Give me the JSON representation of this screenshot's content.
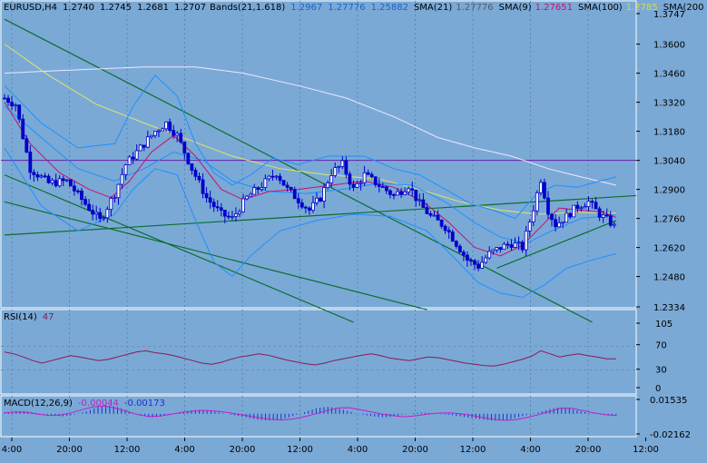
{
  "colors": {
    "background": "#7aa9d6",
    "candle": "#0000c8",
    "bands": "#1e90ff",
    "sma21": "#c0c0c0",
    "sma9": "#c8106e",
    "sma100": "#e3e36a",
    "sma200": "#f0e6ff",
    "trendline": "#0a6e2e",
    "hline": "#6b1fa8",
    "rsi": "#8c1a55",
    "macd_hist": "#1f2fd0",
    "macd_signal": "#c21ec6"
  },
  "main_legend": {
    "symbol": "EURUSD,H4",
    "ohlc": [
      "1.2740",
      "1.2745",
      "1.2681",
      "1.2707"
    ],
    "bands_label": "Bands(21,1.618)",
    "bands_values": [
      "1.2967",
      "1.27776",
      "1.25882"
    ],
    "sma21_label": "SMA(21)",
    "sma21_value": "1.27776",
    "sma9_label": "SMA(9)",
    "sma9_value": "1.27651",
    "sma100_label": "SMA(100)",
    "sma100_value": "1.2785",
    "sma200_label": "SMA(200"
  },
  "rsi_legend": {
    "label": "RSI(14)",
    "value": "47"
  },
  "macd_legend": {
    "label": "MACD(12,26,9)",
    "value1": "-0.00044",
    "value2": "-0.00173"
  },
  "chart_data": {
    "type": "candlestick",
    "symbol": "EURUSD",
    "timeframe": "H4",
    "price_axis": {
      "ticks": [
        "1.3747",
        "1.3600",
        "1.3460",
        "1.3320",
        "1.3180",
        "1.3040",
        "1.2900",
        "1.2760",
        "1.2620",
        "1.2480",
        "1.2334"
      ],
      "ylim": [
        1.2334,
        1.3747
      ]
    },
    "time_axis": {
      "ticks": [
        "4:00",
        "20:00",
        "12:00",
        "4:00",
        "20:00",
        "12:00",
        "4:00",
        "20:00",
        "12:00",
        "4:00",
        "20:00",
        "12:00"
      ]
    },
    "horizontal_line": 1.304,
    "price_path": [
      [
        0,
        1.334
      ],
      [
        6,
        1.331
      ],
      [
        14,
        1.3
      ],
      [
        24,
        1.293
      ],
      [
        34,
        1.294
      ],
      [
        44,
        1.283
      ],
      [
        52,
        1.275
      ],
      [
        60,
        1.288
      ],
      [
        66,
        1.302
      ],
      [
        74,
        1.31
      ],
      [
        82,
        1.318
      ],
      [
        88,
        1.322
      ],
      [
        94,
        1.316
      ],
      [
        102,
        1.3
      ],
      [
        110,
        1.286
      ],
      [
        118,
        1.278
      ],
      [
        124,
        1.276
      ],
      [
        132,
        1.286
      ],
      [
        140,
        1.292
      ],
      [
        148,
        1.298
      ],
      [
        154,
        1.29
      ],
      [
        160,
        1.285
      ],
      [
        166,
        1.28
      ],
      [
        172,
        1.286
      ],
      [
        178,
        1.298
      ],
      [
        184,
        1.302
      ],
      [
        190,
        1.29
      ],
      [
        196,
        1.297
      ],
      [
        204,
        1.292
      ],
      [
        212,
        1.287
      ],
      [
        220,
        1.292
      ],
      [
        226,
        1.283
      ],
      [
        232,
        1.277
      ],
      [
        240,
        1.272
      ],
      [
        246,
        1.264
      ],
      [
        252,
        1.256
      ],
      [
        258,
        1.253
      ],
      [
        264,
        1.259
      ],
      [
        270,
        1.262
      ],
      [
        276,
        1.264
      ],
      [
        282,
        1.262
      ],
      [
        288,
        1.281
      ],
      [
        292,
        1.295
      ],
      [
        296,
        1.28
      ],
      [
        300,
        1.273
      ],
      [
        306,
        1.277
      ],
      [
        312,
        1.282
      ],
      [
        318,
        1.284
      ],
      [
        324,
        1.278
      ],
      [
        330,
        1.274
      ],
      [
        333,
        1.271
      ]
    ],
    "indicators": {
      "bollinger_upper": [
        [
          0,
          1.34
        ],
        [
          20,
          1.322
        ],
        [
          40,
          1.31
        ],
        [
          60,
          1.312
        ],
        [
          70,
          1.33
        ],
        [
          82,
          1.345
        ],
        [
          94,
          1.335
        ],
        [
          104,
          1.312
        ],
        [
          114,
          1.298
        ],
        [
          124,
          1.292
        ],
        [
          134,
          1.297
        ],
        [
          146,
          1.305
        ],
        [
          160,
          1.302
        ],
        [
          176,
          1.306
        ],
        [
          196,
          1.306
        ],
        [
          212,
          1.3
        ],
        [
          226,
          1.297
        ],
        [
          240,
          1.29
        ],
        [
          254,
          1.283
        ],
        [
          266,
          1.28
        ],
        [
          278,
          1.276
        ],
        [
          290,
          1.288
        ],
        [
          300,
          1.292
        ],
        [
          312,
          1.291
        ],
        [
          324,
          1.294
        ],
        [
          333,
          1.296
        ]
      ],
      "bollinger_lower": [
        [
          0,
          1.31
        ],
        [
          20,
          1.282
        ],
        [
          40,
          1.27
        ],
        [
          60,
          1.278
        ],
        [
          70,
          1.29
        ],
        [
          82,
          1.3
        ],
        [
          94,
          1.297
        ],
        [
          104,
          1.275
        ],
        [
          114,
          1.255
        ],
        [
          124,
          1.248
        ],
        [
          134,
          1.258
        ],
        [
          150,
          1.27
        ],
        [
          170,
          1.275
        ],
        [
          190,
          1.278
        ],
        [
          210,
          1.277
        ],
        [
          230,
          1.27
        ],
        [
          246,
          1.256
        ],
        [
          258,
          1.245
        ],
        [
          270,
          1.24
        ],
        [
          282,
          1.238
        ],
        [
          294,
          1.244
        ],
        [
          306,
          1.252
        ],
        [
          320,
          1.256
        ],
        [
          333,
          1.259
        ]
      ],
      "sma9": [
        [
          0,
          1.332
        ],
        [
          14,
          1.312
        ],
        [
          30,
          1.298
        ],
        [
          46,
          1.29
        ],
        [
          58,
          1.286
        ],
        [
          68,
          1.294
        ],
        [
          80,
          1.308
        ],
        [
          92,
          1.316
        ],
        [
          104,
          1.306
        ],
        [
          118,
          1.29
        ],
        [
          130,
          1.285
        ],
        [
          144,
          1.289
        ],
        [
          160,
          1.29
        ],
        [
          178,
          1.292
        ],
        [
          196,
          1.294
        ],
        [
          212,
          1.291
        ],
        [
          228,
          1.284
        ],
        [
          242,
          1.274
        ],
        [
          256,
          1.262
        ],
        [
          270,
          1.258
        ],
        [
          282,
          1.263
        ],
        [
          292,
          1.272
        ],
        [
          302,
          1.281
        ],
        [
          314,
          1.28
        ],
        [
          326,
          1.279
        ],
        [
          333,
          1.2765
        ]
      ],
      "sma21": [
        [
          0,
          1.33
        ],
        [
          20,
          1.315
        ],
        [
          40,
          1.3
        ],
        [
          60,
          1.294
        ],
        [
          76,
          1.3
        ],
        [
          92,
          1.308
        ],
        [
          108,
          1.304
        ],
        [
          124,
          1.294
        ],
        [
          144,
          1.289
        ],
        [
          164,
          1.288
        ],
        [
          184,
          1.29
        ],
        [
          204,
          1.293
        ],
        [
          222,
          1.292
        ],
        [
          240,
          1.284
        ],
        [
          256,
          1.274
        ],
        [
          270,
          1.267
        ],
        [
          284,
          1.264
        ],
        [
          298,
          1.27
        ],
        [
          314,
          1.276
        ],
        [
          333,
          1.2778
        ]
      ],
      "sma100": [
        [
          0,
          1.36
        ],
        [
          24,
          1.345
        ],
        [
          50,
          1.331
        ],
        [
          76,
          1.322
        ],
        [
          100,
          1.314
        ],
        [
          124,
          1.306
        ],
        [
          150,
          1.3
        ],
        [
          176,
          1.297
        ],
        [
          204,
          1.295
        ],
        [
          226,
          1.29
        ],
        [
          248,
          1.284
        ],
        [
          270,
          1.28
        ],
        [
          290,
          1.278
        ],
        [
          312,
          1.279
        ],
        [
          333,
          1.2785
        ]
      ],
      "sma200": [
        [
          0,
          1.346
        ],
        [
          24,
          1.347
        ],
        [
          50,
          1.348
        ],
        [
          76,
          1.349
        ],
        [
          104,
          1.349
        ],
        [
          130,
          1.346
        ],
        [
          160,
          1.34
        ],
        [
          186,
          1.334
        ],
        [
          212,
          1.325
        ],
        [
          236,
          1.315
        ],
        [
          256,
          1.31
        ],
        [
          276,
          1.306
        ],
        [
          296,
          1.3
        ],
        [
          314,
          1.296
        ],
        [
          333,
          1.292
        ]
      ]
    },
    "trendlines": [
      [
        [
          0,
          1.372
        ],
        [
          320,
          1.226
        ]
      ],
      [
        [
          0,
          1.297
        ],
        [
          190,
          1.226
        ]
      ],
      [
        [
          0,
          1.284
        ],
        [
          230,
          1.232
        ]
      ],
      [
        [
          0,
          1.268
        ],
        [
          380,
          1.289
        ]
      ],
      [
        [
          268,
          1.252
        ],
        [
          333,
          1.275
        ]
      ]
    ],
    "rsi": {
      "label": "RSI(14)",
      "ticks": [
        "105",
        "70",
        "30",
        "0"
      ],
      "ylim": [
        0,
        105
      ],
      "values": [
        58,
        55,
        50,
        44,
        40,
        44,
        48,
        52,
        50,
        47,
        44,
        46,
        50,
        54,
        58,
        60,
        57,
        55,
        52,
        48,
        44,
        40,
        38,
        41,
        46,
        50,
        52,
        55,
        53,
        49,
        45,
        42,
        39,
        37,
        40,
        44,
        47,
        50,
        53,
        55,
        52,
        48,
        46,
        44,
        47,
        50,
        49,
        46,
        43,
        40,
        38,
        36,
        35,
        38,
        42,
        46,
        51,
        60,
        55,
        50,
        53,
        55,
        52,
        50,
        47,
        47
      ]
    },
    "macd": {
      "label": "MACD(12,26,9)",
      "ticks": [
        "0.01535",
        "-0.02162"
      ],
      "ylim": [
        -0.02162,
        0.01535
      ],
      "histogram": [
        0.0012,
        0.0016,
        0.002,
        0.0026,
        0.003,
        0.0028,
        0.0024,
        0.0018,
        0.001,
        0.0004,
        -0.0004,
        -0.001,
        -0.0016,
        -0.002,
        -0.0024,
        -0.0026,
        -0.0022,
        -0.0016,
        -0.0008,
        0.0004,
        0.0014,
        0.0026,
        0.004,
        0.0056,
        0.0072,
        0.0084,
        0.009,
        0.0088,
        0.0082,
        0.0072,
        0.0058,
        0.0042,
        0.0026,
        0.001,
        -0.0004,
        -0.0016,
        -0.0026,
        -0.0034,
        -0.0038,
        -0.0036,
        -0.003,
        -0.0022,
        -0.0012,
        -0.0002,
        0.0008,
        0.0016,
        0.0024,
        0.003,
        0.0036,
        0.004,
        0.0042,
        0.004,
        0.0036,
        0.003,
        0.0022,
        0.0014,
        0.0006,
        0.0,
        -0.0008,
        -0.0016,
        -0.0024,
        -0.0032,
        -0.004,
        -0.0048,
        -0.0056,
        -0.0062,
        -0.0066,
        -0.007,
        -0.0072,
        -0.007,
        -0.0066,
        -0.006,
        -0.005,
        -0.0038,
        -0.0024,
        -0.001,
        0.0004,
        0.0018,
        0.0032,
        0.0046,
        0.0058,
        0.0066,
        0.0072,
        0.0074,
        0.007,
        0.0062,
        0.0052,
        0.0042,
        0.003,
        0.0018,
        0.0006,
        -0.0004,
        -0.0012,
        -0.0018,
        -0.0024,
        -0.003,
        -0.0034,
        -0.0036,
        -0.0036,
        -0.0032,
        -0.0026,
        -0.0018,
        -0.001,
        -0.0004,
        0.0002,
        0.0008,
        0.0012,
        0.0014,
        0.0012,
        0.0008,
        0.0004,
        0.0,
        -0.0004,
        -0.0008,
        -0.0012,
        -0.0016,
        -0.0022,
        -0.0028,
        -0.0034,
        -0.004,
        -0.0046,
        -0.0052,
        -0.0058,
        -0.0064,
        -0.0068,
        -0.0072,
        -0.0074,
        -0.0074,
        -0.007,
        -0.0064,
        -0.0056,
        -0.0046,
        -0.0036,
        -0.0026,
        -0.0016,
        -0.0006,
        0.0004,
        0.0014,
        0.0026,
        0.0038,
        0.005,
        0.006,
        0.0066,
        0.0068,
        0.0064,
        0.0056,
        0.0046,
        0.0036,
        0.0026,
        0.0018,
        0.001,
        0.0004,
        -0.0002,
        -0.0008,
        -0.0014,
        -0.0018,
        -0.002,
        -0.0018
      ],
      "signal": [
        0.001,
        0.002,
        0.0015,
        -0.0005,
        -0.0018,
        -0.0015,
        0.001,
        0.0045,
        0.0075,
        0.0082,
        0.006,
        0.0025,
        -0.001,
        -0.003,
        -0.0025,
        -0.0005,
        0.0015,
        0.003,
        0.0036,
        0.003,
        0.0015,
        -0.0005,
        -0.0025,
        -0.0045,
        -0.006,
        -0.0066,
        -0.0055,
        -0.003,
        0.0,
        0.0035,
        0.0062,
        0.0065,
        0.0045,
        0.002,
        -0.0005,
        -0.0022,
        -0.0032,
        -0.0022,
        -0.0005,
        0.0008,
        0.001,
        0.0,
        -0.0018,
        -0.004,
        -0.006,
        -0.007,
        -0.0062,
        -0.004,
        -0.001,
        0.0025,
        0.0058,
        0.006,
        0.0035,
        0.001,
        -0.001,
        -0.0018
      ]
    }
  }
}
